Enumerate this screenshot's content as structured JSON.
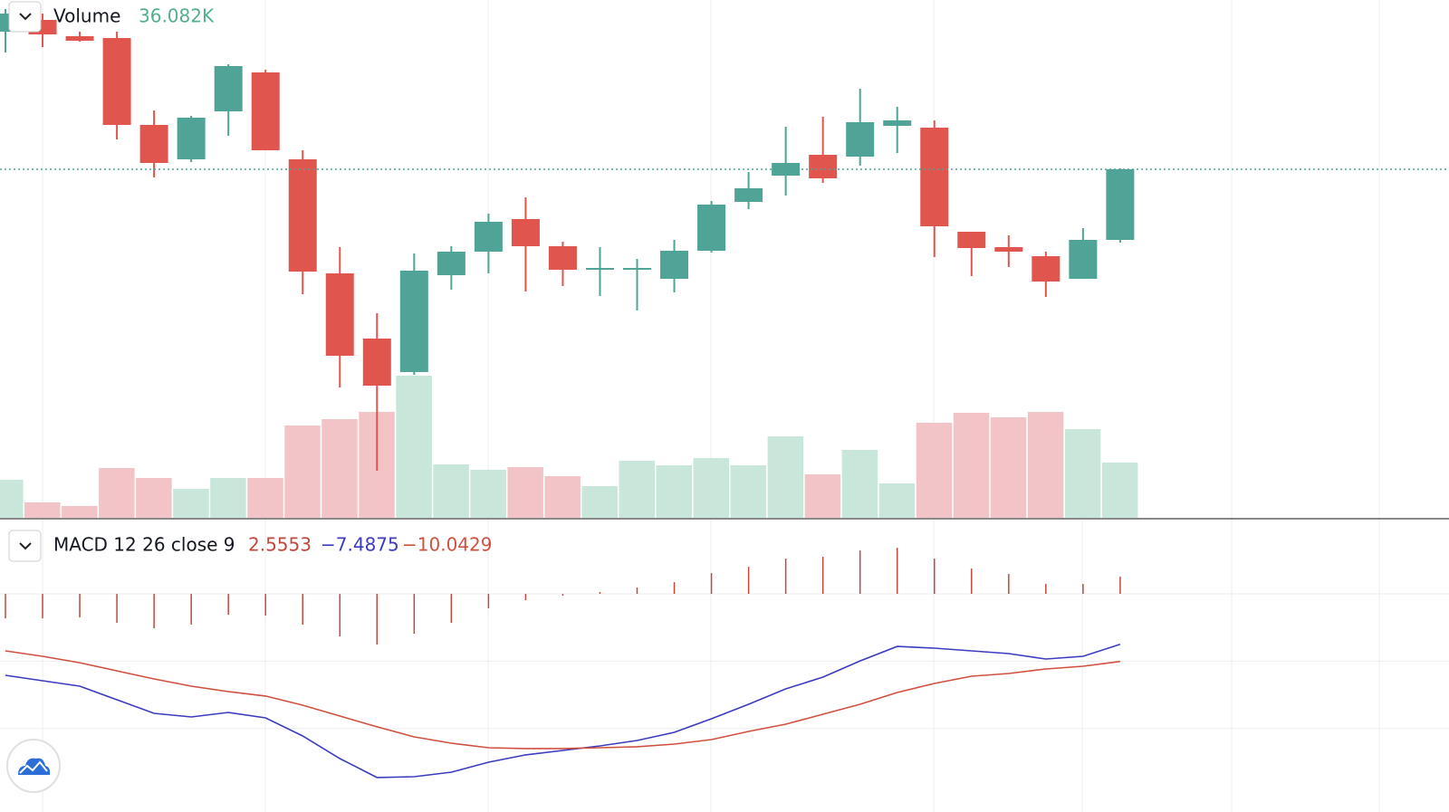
{
  "chart_data": [
    {
      "type": "candlestick",
      "up_color": "#4fa397",
      "down_color": "#e0564f",
      "ylim": [
        0,
        572
      ],
      "open": [
        537,
        550,
        532,
        530,
        434,
        396,
        449,
        492,
        396,
        270,
        198,
        161,
        268,
        294,
        330,
        300,
        274,
        274,
        264,
        295,
        349,
        378,
        401,
        399,
        433,
        431,
        316,
        299,
        289,
        264,
        307
      ],
      "high": [
        562,
        557,
        537,
        537,
        450,
        444,
        501,
        495,
        406,
        299,
        226,
        292,
        300,
        336,
        354,
        305,
        299,
        286,
        307,
        350,
        382,
        432,
        443,
        474,
        454,
        439,
        316,
        312,
        294,
        320,
        386
      ],
      "low": [
        514,
        520,
        526,
        418,
        376,
        393,
        422,
        406,
        247,
        144,
        52,
        158,
        252,
        270,
        250,
        256,
        245,
        229,
        249,
        293,
        341,
        356,
        370,
        389,
        403,
        288,
        267,
        277,
        244,
        264,
        304
      ],
      "close": [
        557,
        534,
        527,
        434,
        392,
        442,
        499,
        406,
        272,
        179,
        146,
        273,
        294,
        327,
        300,
        274,
        276,
        276,
        295,
        346,
        364,
        392,
        375,
        437,
        439,
        322,
        298,
        294,
        261,
        307,
        385
      ],
      "volume": {
        "name": "Volume",
        "current_label": "36.082K",
        "label_color": "#53b08a",
        "up_color": "#c8e6da",
        "down_color": "#f2c4c7",
        "ylim": [
          0,
          100000
        ],
        "values": [
          24843,
          10056,
          7690,
          32533,
          26026,
          18928,
          26026,
          26026,
          60333,
          64474,
          69206,
          92866,
          34899,
          31350,
          33124,
          27209,
          20703,
          37265,
          34307,
          39039,
          34307,
          53235,
          28392,
          44363,
          22477,
          62108,
          68614,
          65657,
          69206,
          57967,
          36082
        ]
      }
    },
    {
      "type": "macd",
      "name": "MACD 12 26 close 9",
      "ylim": [
        -32.4,
        10.9
      ],
      "yticks": [
        0,
        -10,
        -20
      ],
      "grid": true,
      "series": [
        {
          "kind": "histogram",
          "color": "#c0483e",
          "current_label": "2.5553",
          "values": [
            -3.63,
            -3.63,
            -3.49,
            -4.3,
            -5.11,
            -4.57,
            -3.09,
            -3.23,
            -4.57,
            -6.32,
            -7.53,
            -5.91,
            -4.3,
            -2.15,
            -0.94,
            -0.27,
            0.27,
            0.94,
            1.75,
            3.09,
            4.03,
            5.24,
            5.51,
            6.45,
            6.85,
            5.24,
            3.76,
            2.96,
            1.48,
            1.48,
            2.5553
          ]
        },
        {
          "kind": "line",
          "color": "#3b3bbf",
          "current_label": "−7.4875",
          "values": [
            -12.1,
            -12.9,
            -13.71,
            -15.73,
            -17.74,
            -18.28,
            -17.61,
            -18.41,
            -21.1,
            -24.46,
            -27.28,
            -27.15,
            -26.48,
            -25.0,
            -23.92,
            -23.25,
            -22.58,
            -21.77,
            -20.56,
            -18.55,
            -16.4,
            -14.11,
            -12.37,
            -9.95,
            -7.8,
            -8.06,
            -8.47,
            -8.87,
            -9.68,
            -9.27,
            -7.4875
          ]
        },
        {
          "kind": "line",
          "color": "#d05040",
          "current_label": "−10.0429",
          "values": [
            -8.47,
            -9.27,
            -10.22,
            -11.43,
            -12.63,
            -13.71,
            -14.52,
            -15.18,
            -16.53,
            -18.14,
            -19.75,
            -21.24,
            -22.18,
            -22.85,
            -22.98,
            -22.98,
            -22.85,
            -22.71,
            -22.31,
            -21.64,
            -20.43,
            -19.35,
            -17.88,
            -16.4,
            -14.65,
            -13.3,
            -12.23,
            -11.83,
            -11.16,
            -10.75,
            -10.0429
          ]
        }
      ]
    }
  ]
}
